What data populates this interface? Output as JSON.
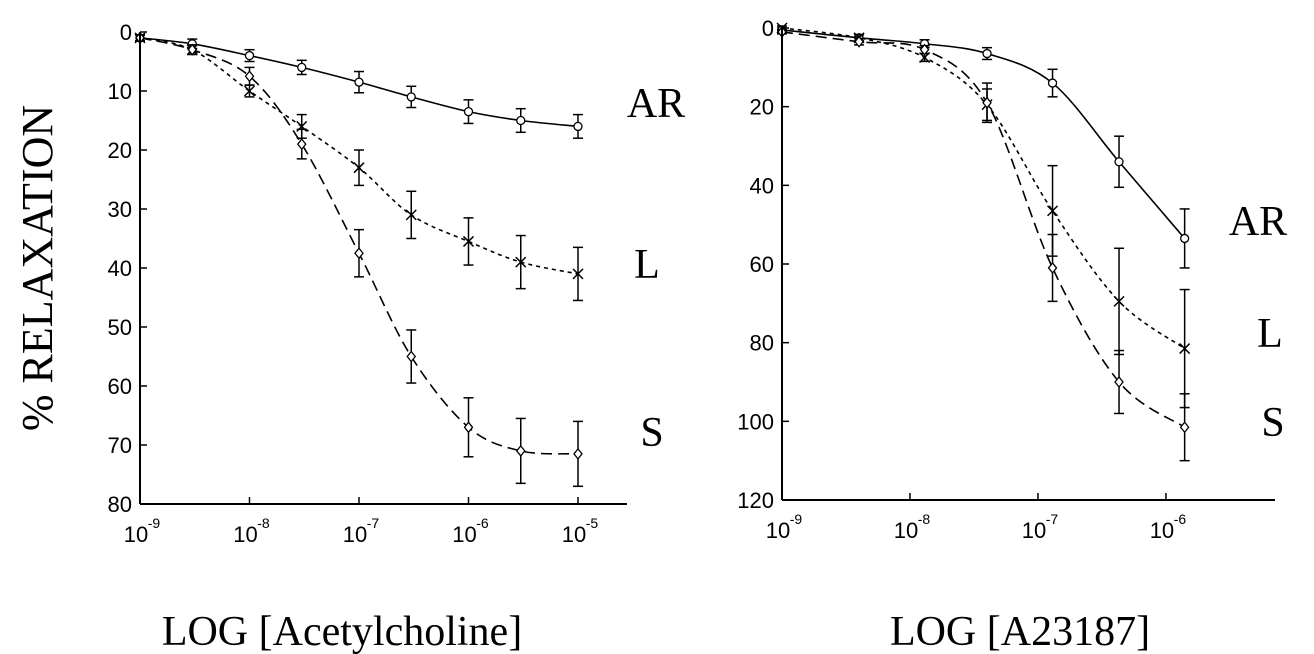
{
  "figure": {
    "ylabel": "% RELAXATION"
  },
  "chart_data": [
    {
      "type": "line",
      "title": "",
      "xlabel": "LOG [Acetylcholine]",
      "ylabel": "% RELAXATION",
      "x_scale": "log",
      "xlim": [
        1e-09,
        1e-05
      ],
      "ylim": [
        0,
        80
      ],
      "y_inverted": true,
      "x_ticks": [
        {
          "base": "10",
          "exp": "-9",
          "value": 1e-09
        },
        {
          "base": "10",
          "exp": "-8",
          "value": 1e-08
        },
        {
          "base": "10",
          "exp": "-7",
          "value": 1e-07
        },
        {
          "base": "10",
          "exp": "-6",
          "value": 1e-06
        },
        {
          "base": "10",
          "exp": "-5",
          "value": 1e-05
        }
      ],
      "y_ticks": [
        0,
        10,
        20,
        30,
        40,
        50,
        60,
        70,
        80
      ],
      "series": [
        {
          "name": "AR",
          "marker": "o",
          "line_style": "solid",
          "x": [
            1e-09,
            3e-09,
            1e-08,
            3e-08,
            1e-07,
            3e-07,
            1e-06,
            3e-06,
            1e-05
          ],
          "y": [
            1,
            2,
            4,
            6,
            8.5,
            11,
            13.5,
            15,
            16
          ],
          "err": [
            0.5,
            0.8,
            1,
            1.2,
            1.8,
            1.8,
            2,
            2,
            2
          ]
        },
        {
          "name": "L",
          "marker": "x",
          "line_style": "dotted",
          "x": [
            1e-09,
            3e-09,
            1e-08,
            3e-08,
            1e-07,
            3e-07,
            1e-06,
            3e-06,
            1e-05
          ],
          "y": [
            1,
            3,
            10,
            16,
            23,
            31,
            35.5,
            39,
            41
          ],
          "err": [
            0.5,
            0.8,
            1,
            2,
            3,
            4,
            4,
            4.5,
            4.5
          ]
        },
        {
          "name": "S",
          "marker": "diamond",
          "line_style": "dashed",
          "x": [
            1e-09,
            3e-09,
            1e-08,
            3e-08,
            1e-07,
            3e-07,
            1e-06,
            3e-06,
            1e-05
          ],
          "y": [
            1,
            3,
            7.5,
            19,
            37.5,
            55,
            67,
            71,
            71.5
          ],
          "err": [
            0.5,
            0.8,
            1.5,
            2.5,
            4,
            4.5,
            5,
            5.5,
            5.5
          ]
        }
      ]
    },
    {
      "type": "line",
      "title": "",
      "xlabel": "LOG [A23187]",
      "ylabel": "% RELAXATION",
      "x_scale": "log",
      "xlim": [
        1e-09,
        3e-06
      ],
      "ylim": [
        0,
        120
      ],
      "y_inverted": true,
      "x_ticks": [
        {
          "base": "10",
          "exp": "-9",
          "value": 1e-09
        },
        {
          "base": "10",
          "exp": "-8",
          "value": 1e-08
        },
        {
          "base": "10",
          "exp": "-7",
          "value": 1e-07
        },
        {
          "base": "10",
          "exp": "-6",
          "value": 1e-06
        }
      ],
      "y_ticks": [
        0,
        20,
        40,
        60,
        80,
        100,
        120
      ],
      "series": [
        {
          "name": "AR",
          "marker": "o",
          "line_style": "solid",
          "x": [
            1e-09,
            4e-09,
            1.3e-08,
            4e-08,
            1.3e-07,
            4.3e-07,
            1.4e-06
          ],
          "y": [
            0.5,
            2.5,
            4,
            6.5,
            14,
            34,
            53.5
          ],
          "err": [
            0.5,
            0.8,
            1,
            1.5,
            3.5,
            6.5,
            7.5
          ]
        },
        {
          "name": "L",
          "marker": "x",
          "line_style": "dotted",
          "x": [
            1e-09,
            4e-09,
            1.3e-08,
            4e-08,
            1.3e-07,
            4.3e-07,
            1.4e-06
          ],
          "y": [
            0,
            2.5,
            7.5,
            19.5,
            46.5,
            69.5,
            81.5
          ],
          "err": [
            0.5,
            0.8,
            1,
            4,
            11.5,
            13.5,
            15
          ]
        },
        {
          "name": "S",
          "marker": "diamond",
          "line_style": "dashed",
          "x": [
            1e-09,
            4e-09,
            1.3e-08,
            4e-08,
            1.3e-07,
            4.3e-07,
            1.4e-06
          ],
          "y": [
            1,
            3.5,
            5.5,
            19,
            61,
            90,
            101.5
          ],
          "err": [
            0.5,
            0.8,
            1,
            5,
            8.5,
            8,
            8.5
          ]
        }
      ]
    }
  ]
}
